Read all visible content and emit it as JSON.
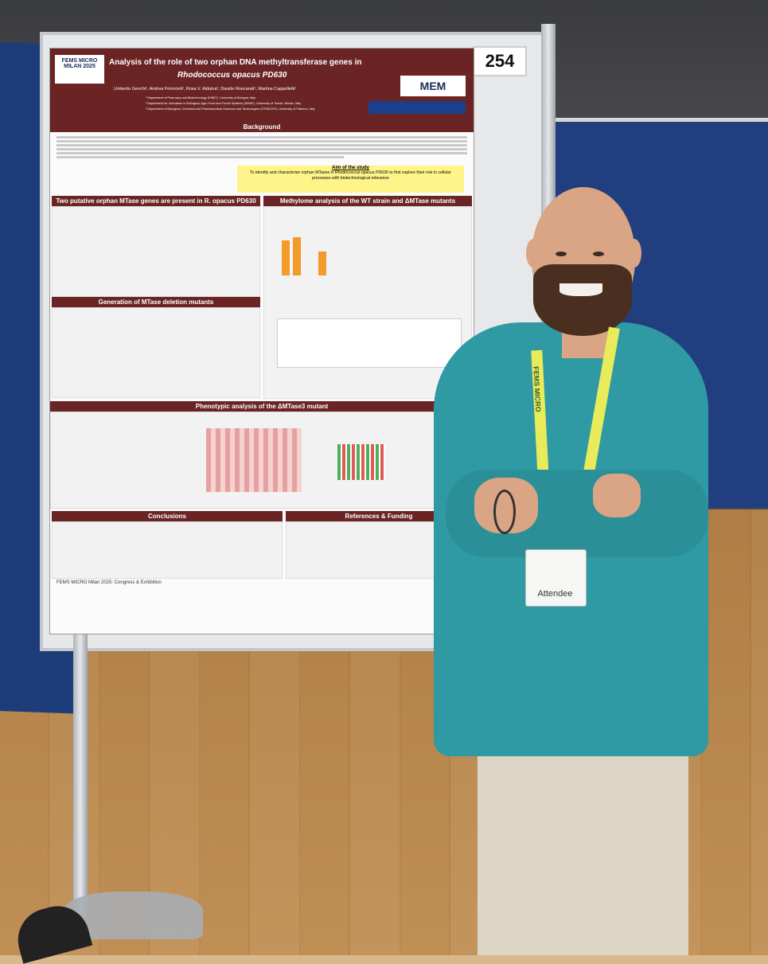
{
  "poster": {
    "number": "254",
    "title_line1": "Analysis of the role of two orphan DNA methyltransferase genes in",
    "title_line2": "Rhodococcus opacus PD630",
    "authors": "Umberto Genchi¹, Andrea Firrincieli², Rosa V. Alduina³, Davide Roncarati¹, Martina Cappelletti¹",
    "affiliations": [
      "¹ Department of Pharmacy and Biotechnology (FABIT), University of Bologna, Italy",
      "² Department for Innovation in Biological, Agro-Food and Forest Systems (DIBAF), University of Tuscia, Viterbo, Italy",
      "³ Department of Biological, Chemical and Pharmaceutical Sciences and Technologies (STEBICEF), University of Palermo, Italy"
    ],
    "logo_left": "FEMS MICRO MILAN 2025",
    "logo_right": "MEM",
    "sections": {
      "background": "Background",
      "aim_title": "Aim of the study",
      "aim_text": "To identify and characterize orphan MTases in Rhodococcus opacus PD630 to first explore their role in cellular processes with biotechnological relevance",
      "orphan": "Two putative orphan MTase genes are present in R. opacus PD630",
      "methylome": "Methylome analysis of the WT strain and ΔMTase mutants",
      "deletion": "Generation of MTase deletion mutants",
      "phenotypic": "Phenotypic analysis of the ΔMTase3 mutant",
      "conclusions": "Conclusions",
      "references": "References & Funding"
    },
    "footer": "FEMS MICRO Milan 2025: Congress & Exhibition"
  },
  "badge": {
    "lanyard_text": "FEMS MICRO",
    "label": "Attendee"
  },
  "colors": {
    "poster_header": "#6b2424",
    "shirt": "#2f9aa3",
    "board": "#1d3c7a"
  }
}
